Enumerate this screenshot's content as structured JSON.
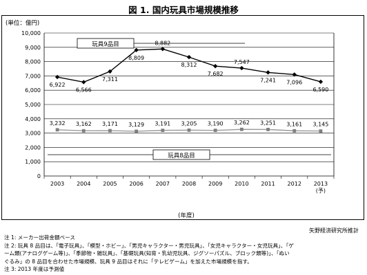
{
  "figure_title": "図 1. 国内玩具市場規模推移",
  "source": "矢野経済研究所推計",
  "notes": [
    "注 1: メーカー出荷金額ベース",
    "注 2: 玩具 8 品目は、「電子玩具」、「模型・ホビー」、「男児キャラクター・男児玩具」、「女児キャラクター・女児玩具」、「ゲ",
    "ーム類(アナログゲーム等)」、「季節物・雑玩具」、「基礎玩具(知育・乳幼児玩具、ジグソーパズル、ブロック類等)」、「ぬい",
    "ぐるみ」の 8 品目を合わせた市場規模、玩具 9 品目はそれに「テレビゲーム」を加えた市場規模を指す。",
    "注 3: 2013 年度は予測値"
  ],
  "chart_data": {
    "type": "line",
    "unit_label": "(単位：億円)",
    "xlabel": "(年度)",
    "x": [
      "2003",
      "2004",
      "2005",
      "2006",
      "2007",
      "2008",
      "2009",
      "2010",
      "2011",
      "2012",
      "2013"
    ],
    "x_sub": [
      "",
      "",
      "",
      "",
      "",
      "",
      "",
      "",
      "",
      "",
      "(予)"
    ],
    "ylim": [
      0,
      10000
    ],
    "yticks": [
      "0",
      "1,000",
      "2,000",
      "3,000",
      "4,000",
      "5,000",
      "6,000",
      "7,000",
      "8,000",
      "9,000",
      "10,000"
    ],
    "grid": true,
    "series": [
      {
        "name": "玩具9品目",
        "values": [
          6922,
          6566,
          7311,
          8809,
          8882,
          8312,
          7682,
          7547,
          7241,
          7096,
          6590
        ],
        "labels": [
          "6,922",
          "6,566",
          "7,311",
          "8,809",
          "8,882",
          "8,312",
          "7,682",
          "7,547",
          "7,241",
          "7,096",
          "6,590"
        ],
        "color": "#000000",
        "marker": "diamond"
      },
      {
        "name": "玩具8品目",
        "values": [
          3232,
          3162,
          3171,
          3129,
          3191,
          3205,
          3190,
          3262,
          3251,
          3161,
          3145
        ],
        "labels": [
          "3,232",
          "3,162",
          "3,171",
          "3,129",
          "3,191",
          "3,205",
          "3,190",
          "3,262",
          "3,251",
          "3,161",
          "3,145"
        ],
        "color": "#9a9a9a",
        "marker": "square"
      }
    ]
  }
}
